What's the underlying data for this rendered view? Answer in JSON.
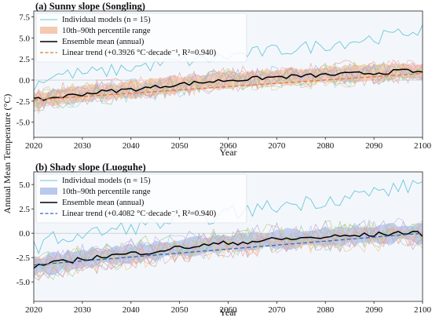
{
  "figure": {
    "ylabel": "Annual Mean Temperature (°C)",
    "xlabel": "Year"
  },
  "chart_data": [
    {
      "type": "line",
      "title": "(a) Sunny slope (Songling)",
      "xlabel": "Year",
      "ylabel": "Annual Mean Temperature (°C)",
      "xlim": [
        2020,
        2100
      ],
      "ylim": [
        -6.8,
        8.2
      ],
      "xticks": [
        "2020",
        "2030",
        "2040",
        "2050",
        "2060",
        "2070",
        "2080",
        "2090",
        "2100"
      ],
      "yticks": [
        "-5.0",
        "-2.5",
        "0.0",
        "2.5",
        "5.0",
        "7.5"
      ],
      "grid": false,
      "legend_position": "top-left",
      "legend": {
        "models": "Individual models (n = 15)",
        "band": "10th–90th percentile range",
        "mean": "Ensemble mean (annual)",
        "trend": "Linear trend  (+0.3926 °C·decade⁻¹,  R²=0.940)"
      },
      "colors": {
        "mean": "#000000",
        "trend": "#e07b39",
        "band": "#f4c9b0",
        "background": "#f3f7fc",
        "outlier": "#6cc7d6"
      },
      "series": [
        {
          "name": "Ensemble mean (annual)",
          "x": [
            2020,
            2024,
            2028,
            2032,
            2036,
            2040,
            2044,
            2048,
            2052,
            2056,
            2060,
            2064,
            2068,
            2072,
            2076,
            2080,
            2084,
            2088,
            2092,
            2096,
            2100
          ],
          "y": [
            -2.4,
            -2.1,
            -1.8,
            -1.5,
            -1.3,
            -1.1,
            -0.9,
            -0.6,
            -0.4,
            -0.2,
            0.0,
            0.1,
            0.3,
            0.4,
            0.5,
            0.6,
            0.7,
            0.8,
            0.9,
            1.1,
            0.9
          ]
        },
        {
          "name": "Linear trend  (+0.3926 °C·decade⁻¹,  R²=0.940)",
          "x": [
            2020,
            2100
          ],
          "y": [
            -2.35,
            0.79
          ]
        }
      ],
      "band": {
        "name": "10th–90th percentile range",
        "lower_offset": -0.9,
        "upper_offset": 0.9
      },
      "highlight_model": {
        "x": [
          2020,
          2024,
          2030,
          2035,
          2040,
          2045,
          2050,
          2055,
          2060,
          2065,
          2070,
          2075,
          2080,
          2085,
          2090,
          2095,
          2100
        ],
        "y": [
          -0.5,
          0.6,
          0.8,
          1.0,
          1.5,
          1.8,
          2.2,
          2.4,
          2.8,
          3.2,
          3.5,
          3.8,
          4.2,
          4.6,
          5.0,
          5.4,
          6.2
        ]
      },
      "spread": 2.4
    },
    {
      "type": "line",
      "title": "(b) Shady slope (Luoguhe)",
      "xlabel": "Year",
      "ylabel": "Annual Mean Temperature (°C)",
      "xlim": [
        2020,
        2100
      ],
      "ylim": [
        -7.0,
        6.3
      ],
      "xticks": [
        "2020",
        "2030",
        "2040",
        "2050",
        "2060",
        "2070",
        "2080",
        "2090",
        "2100"
      ],
      "yticks": [
        "-5.0",
        "-2.5",
        "0.0",
        "2.5",
        "5.0"
      ],
      "grid": false,
      "legend_position": "top-left",
      "legend": {
        "models": "Individual models (n = 15)",
        "band": "10th–90th percentile range",
        "mean": "Ensemble mean (annual)",
        "trend": "Linear trend  (+0.4082 °C·decade⁻¹,  R²=0.940)"
      },
      "colors": {
        "mean": "#000000",
        "trend": "#2f6db5",
        "band": "#b9c8ec",
        "background": "#f3f7fc",
        "outlier": "#6cc7d6"
      },
      "series": [
        {
          "name": "Ensemble mean (annual)",
          "x": [
            2020,
            2024,
            2028,
            2032,
            2036,
            2040,
            2044,
            2048,
            2052,
            2056,
            2060,
            2064,
            2068,
            2072,
            2076,
            2080,
            2084,
            2088,
            2092,
            2096,
            2100
          ],
          "y": [
            -3.4,
            -3.1,
            -2.8,
            -2.5,
            -2.3,
            -2.1,
            -1.9,
            -1.6,
            -1.4,
            -1.2,
            -1.0,
            -0.9,
            -0.7,
            -0.6,
            -0.5,
            -0.4,
            -0.3,
            -0.2,
            -0.1,
            0.1,
            -0.1
          ]
        },
        {
          "name": "Linear trend  (+0.4082 °C·decade⁻¹,  R²=0.940)",
          "x": [
            2020,
            2100
          ],
          "y": [
            -3.26,
            0.0
          ]
        }
      ],
      "band": {
        "name": "10th–90th percentile range",
        "lower_offset": -0.9,
        "upper_offset": 0.9
      },
      "highlight_model": {
        "x": [
          2020,
          2024,
          2030,
          2035,
          2040,
          2045,
          2050,
          2055,
          2060,
          2065,
          2070,
          2075,
          2080,
          2085,
          2090,
          2095,
          2100
        ],
        "y": [
          -1.5,
          -0.6,
          -0.2,
          0.2,
          0.6,
          1.0,
          1.3,
          1.6,
          2.0,
          2.4,
          2.8,
          3.1,
          3.4,
          3.8,
          4.2,
          4.6,
          5.2
        ]
      },
      "spread": 2.3
    }
  ]
}
